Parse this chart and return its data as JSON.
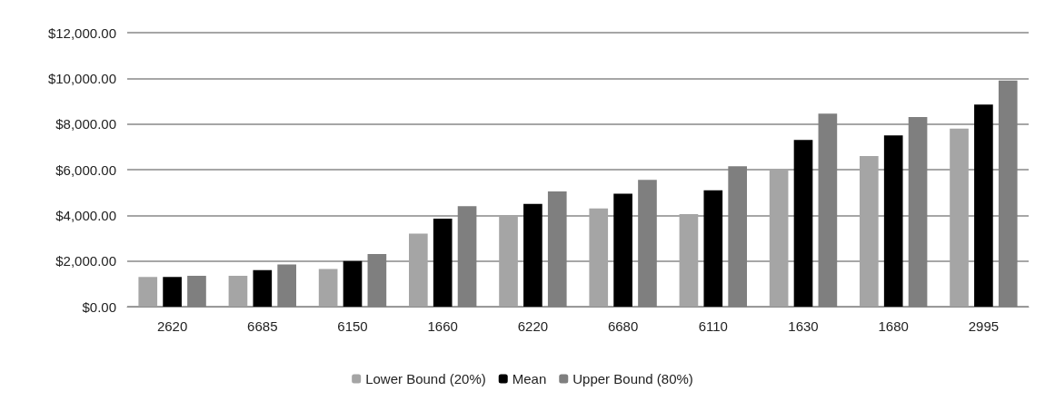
{
  "chart_data": {
    "type": "bar",
    "categories": [
      "2620",
      "6685",
      "6150",
      "1660",
      "6220",
      "6680",
      "6110",
      "1630",
      "1680",
      "2995"
    ],
    "series": [
      {
        "name": "Lower Bound (20%)",
        "color": "#a5a5a5",
        "values": [
          1300,
          1350,
          1650,
          3200,
          4000,
          4300,
          4050,
          6000,
          6600,
          7800
        ]
      },
      {
        "name": "Mean",
        "color": "#000000",
        "values": [
          1300,
          1600,
          2000,
          3850,
          4500,
          4950,
          5100,
          7300,
          7500,
          8850
        ]
      },
      {
        "name": "Upper Bound (80%)",
        "color": "#7f7f7f",
        "values": [
          1350,
          1850,
          2300,
          4400,
          5050,
          5550,
          6150,
          8450,
          8300,
          9900
        ]
      }
    ],
    "ylim": [
      0,
      12000
    ],
    "yticks": [
      {
        "value": 0,
        "label": "$0.00"
      },
      {
        "value": 2000,
        "label": "$2,000.00"
      },
      {
        "value": 4000,
        "label": "$4,000.00"
      },
      {
        "value": 6000,
        "label": "$6,000.00"
      },
      {
        "value": 8000,
        "label": "$8,000.00"
      },
      {
        "value": 10000,
        "label": "$10,000.00"
      },
      {
        "value": 12000,
        "label": "$12,000.00"
      }
    ],
    "grid": "y",
    "legend": "bottom"
  }
}
